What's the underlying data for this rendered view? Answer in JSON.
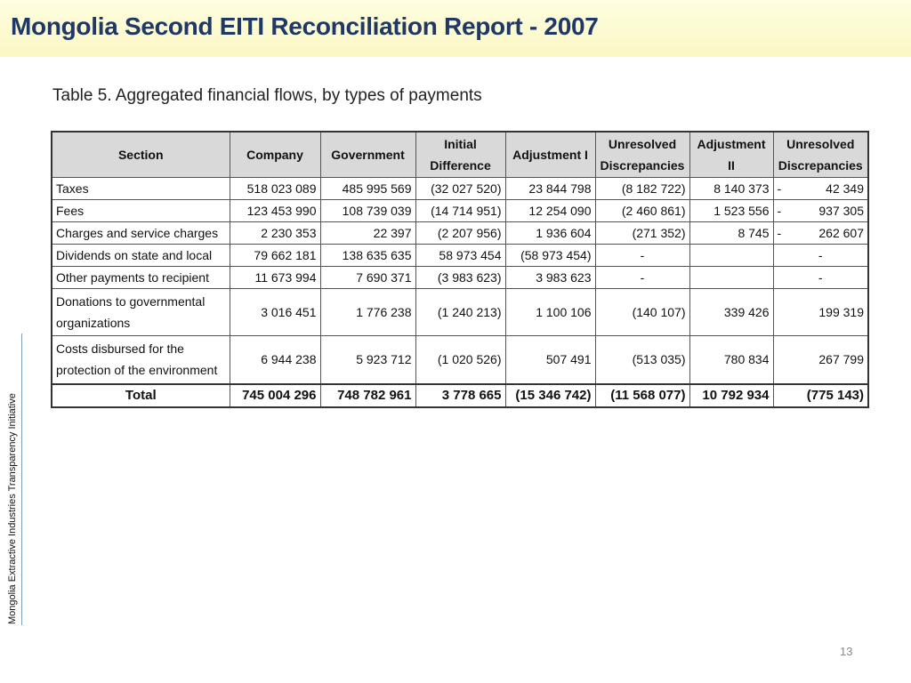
{
  "header": {
    "title": "Mongolia Second EITI Reconciliation Report - 2007"
  },
  "caption": "Table 5. Aggregated financial flows, by types of payments",
  "side_text": "Mongolia Extractive Industries Transparency Initiative",
  "page_number": "13",
  "table": {
    "columns": [
      "Section",
      "Company",
      "Government",
      "Initial Difference",
      "Adjustment I",
      "Unresolved Discrepancies",
      "Adjustment II",
      "Unresolved Discrepancies"
    ],
    "rows": [
      [
        "Taxes",
        "518 023 089",
        "485 995 569",
        "(32 027 520)",
        "23 844 798",
        "(8 182 722)",
        "8 140 373",
        [
          "-",
          "42 349"
        ]
      ],
      [
        "Fees",
        "123 453 990",
        "108 739 039",
        "(14 714 951)",
        "12 254 090",
        "(2 460 861)",
        "1 523 556",
        [
          "-",
          "937 305"
        ]
      ],
      [
        "Charges and service charges",
        "2 230 353",
        "22 397",
        "(2 207 956)",
        "1 936 604",
        "(271 352)",
        "8 745",
        [
          "-",
          "262 607"
        ]
      ],
      [
        "Dividends on state and local",
        "79 662 181",
        "138 635 635",
        "58 973 454",
        "(58 973 454)",
        "-",
        null,
        "-"
      ],
      [
        "Other payments to recipient",
        "11 673 994",
        "7 690 371",
        "(3 983 623)",
        "3 983 623",
        "-",
        null,
        "-"
      ],
      [
        "Donations to governmental organizations",
        "3 016 451",
        "1 776 238",
        "(1 240 213)",
        "1 100 106",
        "(140 107)",
        "339 426",
        "199 319"
      ],
      [
        "Costs disbursed for the protection of the environment",
        "6 944 238",
        "5 923 712",
        "(1 020 526)",
        "507 491",
        "(513 035)",
        "780 834",
        "267 799"
      ]
    ],
    "total": [
      "Total",
      "745 004 296",
      "748 782 961",
      "3 778 665",
      "(15 346 742)",
      "(11 568 077)",
      "10 792 934",
      "(775 143)"
    ]
  }
}
